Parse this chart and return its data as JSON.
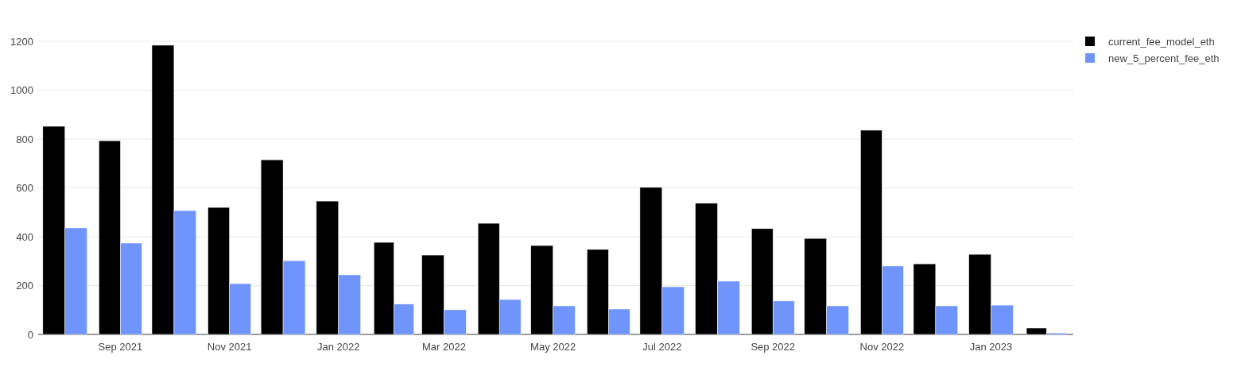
{
  "chart_data": {
    "type": "bar",
    "x": [
      "2021-08",
      "2021-09",
      "2021-10",
      "2021-11",
      "2021-12",
      "2022-01",
      "2022-02",
      "2022-03",
      "2022-04",
      "2022-05",
      "2022-06",
      "2022-07",
      "2022-08",
      "2022-09",
      "2022-10",
      "2022-11",
      "2022-12",
      "2023-01",
      "2023-02"
    ],
    "series": [
      {
        "name": "current_fee_model_eth",
        "color": "#000000",
        "values": [
          852,
          793,
          1184,
          520,
          715,
          546,
          377,
          325,
          455,
          364,
          348,
          602,
          537,
          433,
          393,
          836,
          289,
          328,
          26
        ]
      },
      {
        "name": "new_5_percent_fee_eth",
        "color": "#6f94fb",
        "values": [
          436,
          374,
          507,
          208,
          302,
          244,
          124,
          101,
          143,
          117,
          104,
          195,
          218,
          137,
          117,
          280,
          117,
          120,
          6
        ]
      }
    ],
    "xlim": [
      "2021-07-17",
      "2023-02-16"
    ],
    "xticks": [
      {
        "value": "2021-09",
        "label": "Sep 2021"
      },
      {
        "value": "2021-11",
        "label": "Nov 2021"
      },
      {
        "value": "2022-01",
        "label": "Jan 2022"
      },
      {
        "value": "2022-03",
        "label": "Mar 2022"
      },
      {
        "value": "2022-05",
        "label": "May 2022"
      },
      {
        "value": "2022-07",
        "label": "Jul 2022"
      },
      {
        "value": "2022-09",
        "label": "Sep 2022"
      },
      {
        "value": "2022-11",
        "label": "Nov 2022"
      },
      {
        "value": "2023-01",
        "label": "Jan 2023"
      }
    ],
    "ylim": [
      0,
      1200
    ],
    "yticks": [
      0,
      200,
      400,
      600,
      800,
      1000,
      1200
    ],
    "grid": "y",
    "legend": "top right"
  }
}
